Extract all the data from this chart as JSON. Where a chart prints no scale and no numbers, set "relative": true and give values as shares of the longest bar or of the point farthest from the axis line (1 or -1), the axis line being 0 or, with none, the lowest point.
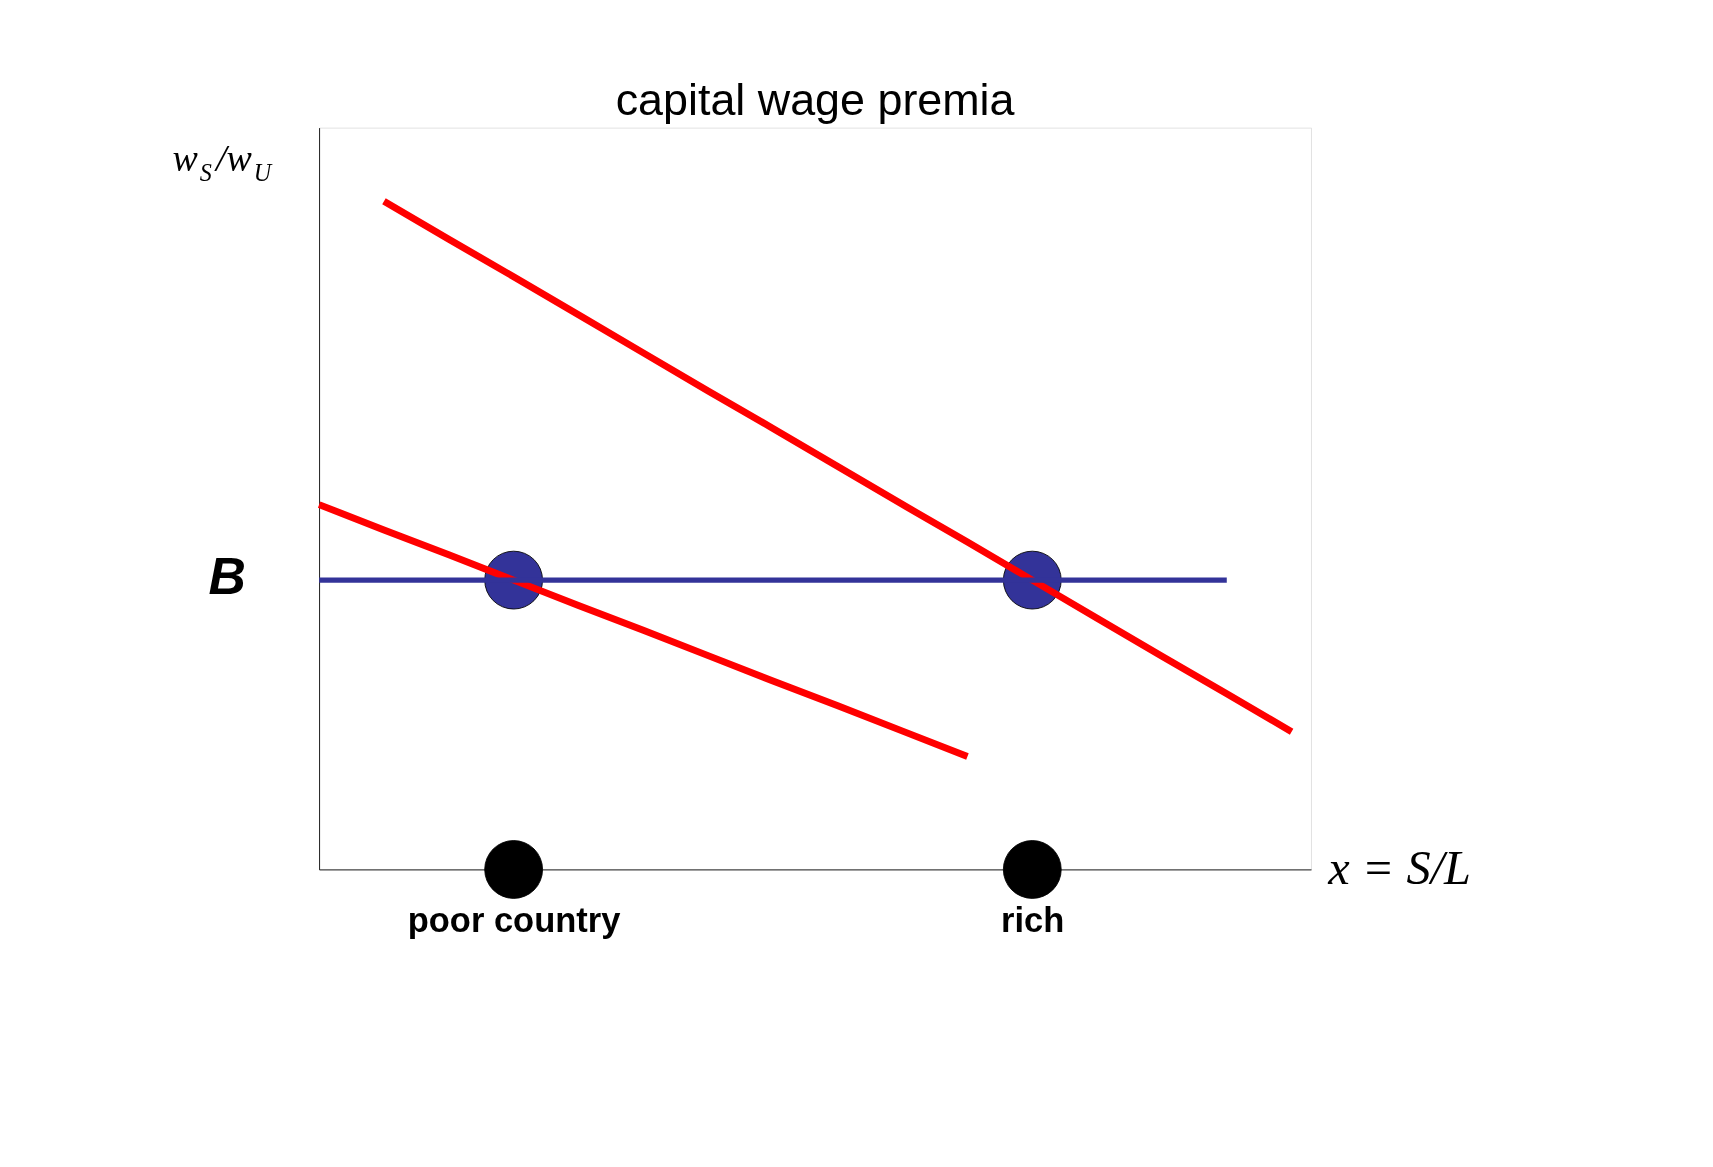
{
  "chart_data": {
    "type": "line",
    "title": "capital wage premia",
    "xlabel": "x = S/L",
    "ylabel": "w$_{S}$/w$_{U}$",
    "relative": true,
    "grid": false,
    "marker": "none",
    "line_style": "solid",
    "categories": [
      null,
      null,
      null,
      "poor country",
      null,
      null,
      null,
      null,
      null,
      null,
      null,
      "rich",
      null,
      null,
      null,
      null
    ],
    "series": [
      {
        "color": "#ff0000",
        "values": [
          null,
          1.0,
          0.943,
          0.887,
          0.83,
          0.773,
          0.716,
          0.66,
          0.603,
          0.546,
          0.49,
          0.433,
          0.376,
          0.319,
          0.263,
          0.206
        ]
      },
      {
        "color": "#ff0000",
        "values": [
          0.546,
          0.508,
          0.471,
          0.433,
          0.395,
          0.358,
          0.32,
          0.282,
          0.245,
          0.207,
          0.169,
          null,
          null,
          null,
          null,
          null
        ]
      },
      {
        "color": "#333399",
        "values": [
          0.433,
          0.433,
          0.433,
          0.433,
          0.433,
          0.433,
          0.433,
          0.433,
          0.433,
          0.433,
          0.433,
          0.433,
          0.433,
          0.433,
          0.433,
          null
        ]
      },
      {
        "type": "scatter",
        "marker": "circle",
        "color": "#333399",
        "x": [
          "poor country",
          "rich"
        ],
        "values": [
          0.433,
          0.433
        ]
      },
      {
        "type": "scatter",
        "marker": "circle",
        "color": "#000000",
        "x": [
          "poor country",
          "rich"
        ],
        "values": [
          0,
          0
        ]
      }
    ],
    "annotations": [
      "B"
    ]
  }
}
